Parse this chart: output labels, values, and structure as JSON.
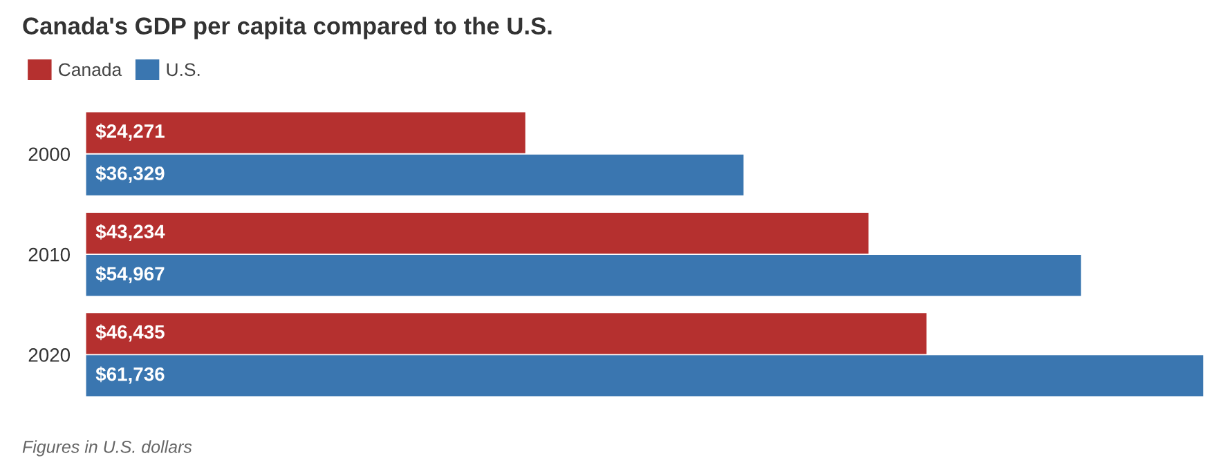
{
  "chart_data": {
    "type": "bar",
    "orientation": "horizontal",
    "title": "Canada's GDP per capita compared to the U.S.",
    "categories": [
      "2000",
      "2010",
      "2020"
    ],
    "series": [
      {
        "name": "Canada",
        "color": "#b5302f",
        "values": [
          24271,
          43234,
          46435
        ],
        "value_labels": [
          "$24,271",
          "$43,234",
          "$46,435"
        ]
      },
      {
        "name": "U.S.",
        "color": "#3a76b0",
        "values": [
          36329,
          54967,
          61736
        ],
        "value_labels": [
          "$36,329",
          "$54,967",
          "$61,736"
        ]
      }
    ],
    "legend": "top left",
    "tick_labels": "y",
    "grid": false,
    "annotations": [
      "Figures in U.S. dollars"
    ]
  }
}
